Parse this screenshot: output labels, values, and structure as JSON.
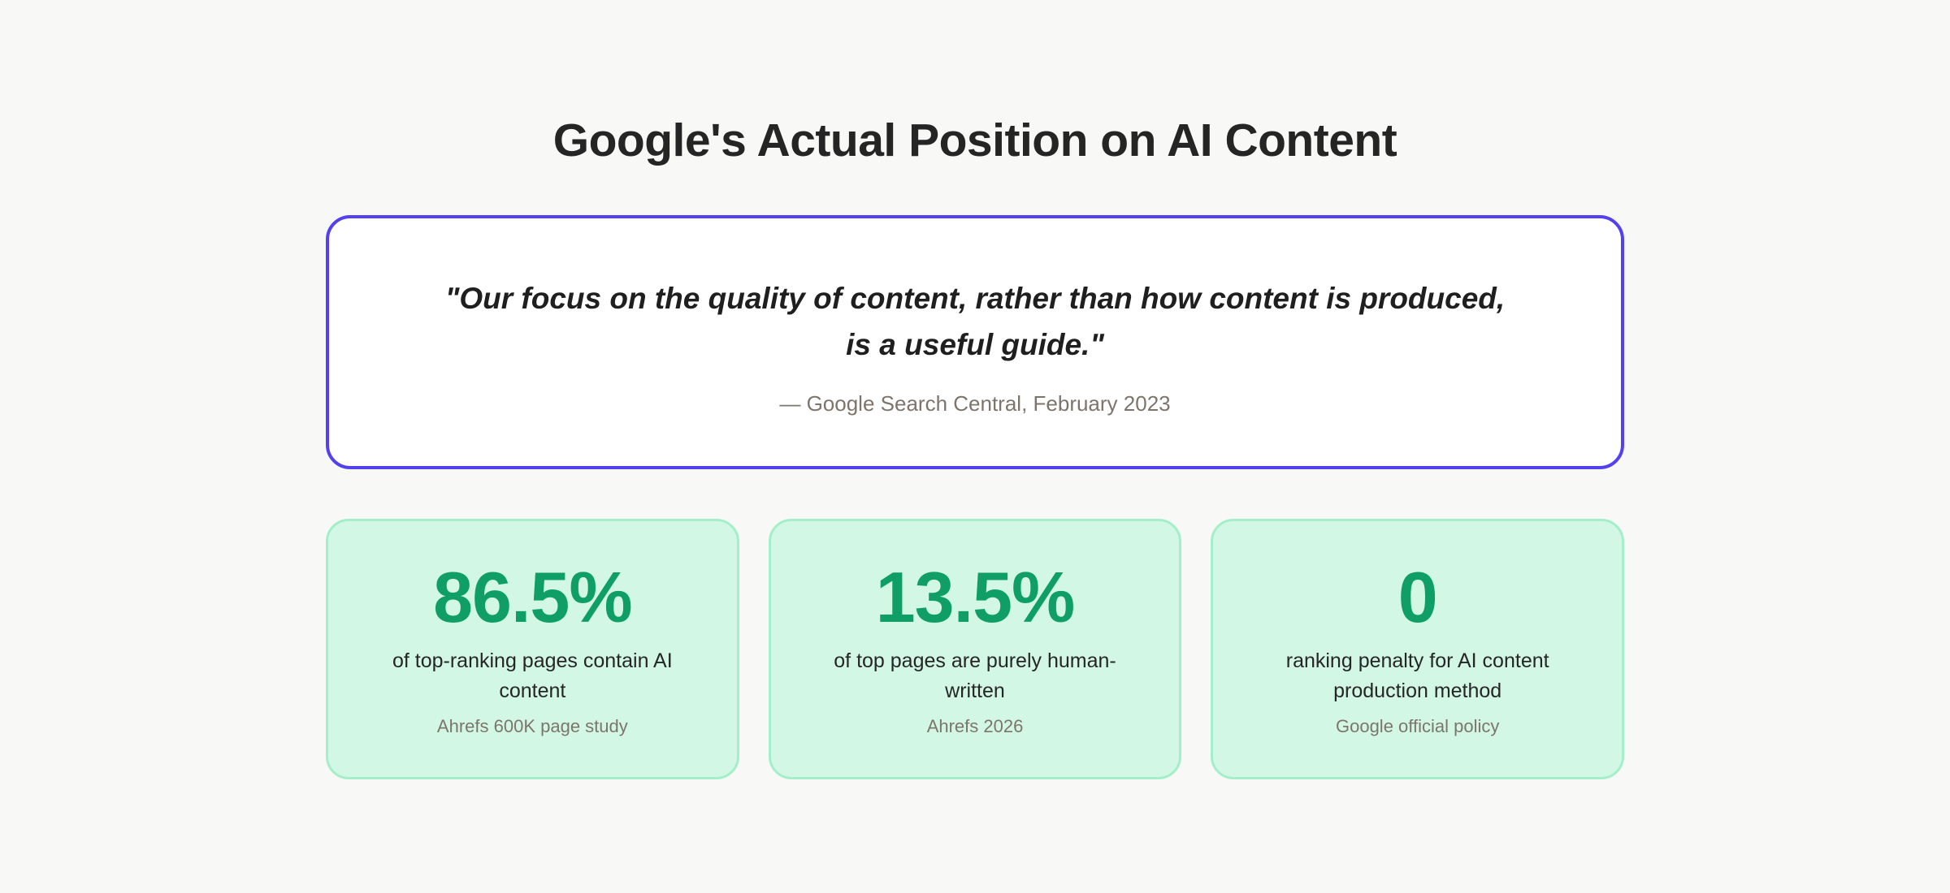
{
  "header": {
    "title": "Google's Actual Position on AI Content"
  },
  "quote": {
    "text": "\"Our focus on the quality of content, rather than how content is produced, is a useful guide.\"",
    "line1": "\"Our focus on the quality of content, rather than how content is produced,",
    "line2": "is a useful guide.\"",
    "attribution": "— Google Search Central, February 2023"
  },
  "stats": [
    {
      "value": "86.5%",
      "label": "of top-ranking pages contain AI content",
      "source": "Ahrefs 600K page study"
    },
    {
      "value": "13.5%",
      "label": "of top pages are purely human-written",
      "source": "Ahrefs 2026"
    },
    {
      "value": "0",
      "label": "ranking penalty for AI content production method",
      "source": "Google official policy"
    }
  ],
  "colors": {
    "page_background": "#f8f8f6",
    "quote_border": "#5340f0",
    "stat_green": "#0f9e66",
    "card_background": "#d2f8e5",
    "card_border": "#a5eecb",
    "muted_text": "#7d756c",
    "dark_text": "#262626"
  }
}
